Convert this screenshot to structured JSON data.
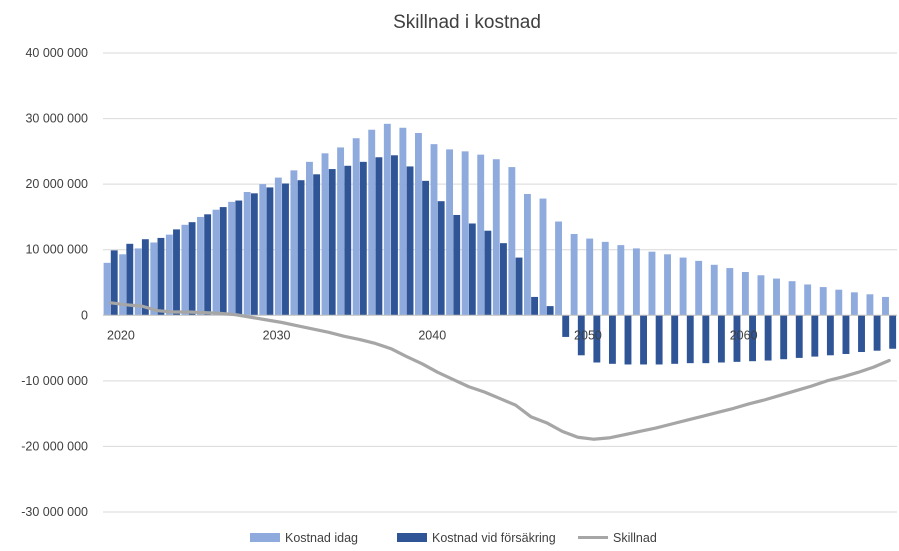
{
  "chart_data": {
    "type": "bar",
    "title": "Skillnad i kostnad",
    "xlabel": "",
    "ylabel": "",
    "ylim": [
      -30000000,
      40000000
    ],
    "yticks": [
      40000000,
      30000000,
      20000000,
      10000000,
      0,
      -10000000,
      -20000000,
      -30000000
    ],
    "ytick_labels": [
      "40 000 000",
      "30 000 000",
      "20 000 000",
      "10 000 000",
      "0",
      "-10 000 000",
      "-20 000 000",
      "-30 000 000"
    ],
    "x_tick_labels": [
      {
        "year": 2020,
        "label": "2020"
      },
      {
        "year": 2030,
        "label": "2030"
      },
      {
        "year": 2040,
        "label": "2040"
      },
      {
        "year": 2050,
        "label": "2050"
      },
      {
        "year": 2060,
        "label": "2060"
      }
    ],
    "grid": "horizontal",
    "legend_position": "bottom",
    "x": [
      2020,
      2021,
      2022,
      2023,
      2024,
      2025,
      2026,
      2027,
      2028,
      2029,
      2030,
      2031,
      2032,
      2033,
      2034,
      2035,
      2036,
      2037,
      2038,
      2039,
      2040,
      2041,
      2042,
      2043,
      2044,
      2045,
      2046,
      2047,
      2048,
      2049,
      2050,
      2051,
      2052,
      2053,
      2054,
      2055,
      2056,
      2057,
      2058,
      2059,
      2060,
      2061,
      2062,
      2063,
      2064,
      2065,
      2066,
      2067,
      2068,
      2069,
      2070
    ],
    "series": [
      {
        "name": "Kostnad idag",
        "kind": "bar",
        "color": "#8FAADC",
        "values": [
          8000000,
          9300000,
          10200000,
          11100000,
          12300000,
          13800000,
          15000000,
          16100000,
          17300000,
          18800000,
          20000000,
          21000000,
          22100000,
          23400000,
          24700000,
          25600000,
          27000000,
          28300000,
          29200000,
          28600000,
          27800000,
          26100000,
          25300000,
          25000000,
          24500000,
          23800000,
          22600000,
          18500000,
          17800000,
          14300000,
          12400000,
          11700000,
          11200000,
          10700000,
          10200000,
          9700000,
          9300000,
          8800000,
          8300000,
          7700000,
          7200000,
          6600000,
          6100000,
          5600000,
          5200000,
          4700000,
          4300000,
          3900000,
          3500000,
          3200000,
          2800000
        ]
      },
      {
        "name": "Kostnad vid försäkring",
        "kind": "bar",
        "color": "#2F5597",
        "values": [
          9900000,
          10900000,
          11600000,
          11800000,
          13100000,
          14200000,
          15400000,
          16500000,
          17500000,
          18600000,
          19500000,
          20100000,
          20600000,
          21500000,
          22300000,
          22800000,
          23400000,
          24100000,
          24400000,
          22700000,
          20500000,
          17400000,
          15300000,
          14000000,
          12900000,
          11000000,
          8800000,
          2800000,
          1400000,
          -3300000,
          -6100000,
          -7200000,
          -7400000,
          -7500000,
          -7500000,
          -7500000,
          -7400000,
          -7300000,
          -7300000,
          -7200000,
          -7100000,
          -7000000,
          -6900000,
          -6700000,
          -6500000,
          -6300000,
          -6100000,
          -5900000,
          -5600000,
          -5400000,
          -5100000
        ]
      },
      {
        "name": "Skillnad",
        "kind": "line",
        "color": "#A6A6A6",
        "values": [
          1900000,
          1600000,
          1400000,
          700000,
          500000,
          500000,
          400000,
          300000,
          100000,
          -300000,
          -700000,
          -1100000,
          -1600000,
          -2100000,
          -2600000,
          -3200000,
          -3700000,
          -4300000,
          -5100000,
          -6300000,
          -7400000,
          -8700000,
          -9800000,
          -10900000,
          -11700000,
          -12700000,
          -13700000,
          -15500000,
          -16400000,
          -17700000,
          -18600000,
          -18900000,
          -18700000,
          -18200000,
          -17700000,
          -17200000,
          -16600000,
          -16000000,
          -15400000,
          -14800000,
          -14200000,
          -13500000,
          -12900000,
          -12200000,
          -11500000,
          -10800000,
          -10000000,
          -9400000,
          -8700000,
          -7900000,
          -6900000
        ]
      }
    ]
  }
}
